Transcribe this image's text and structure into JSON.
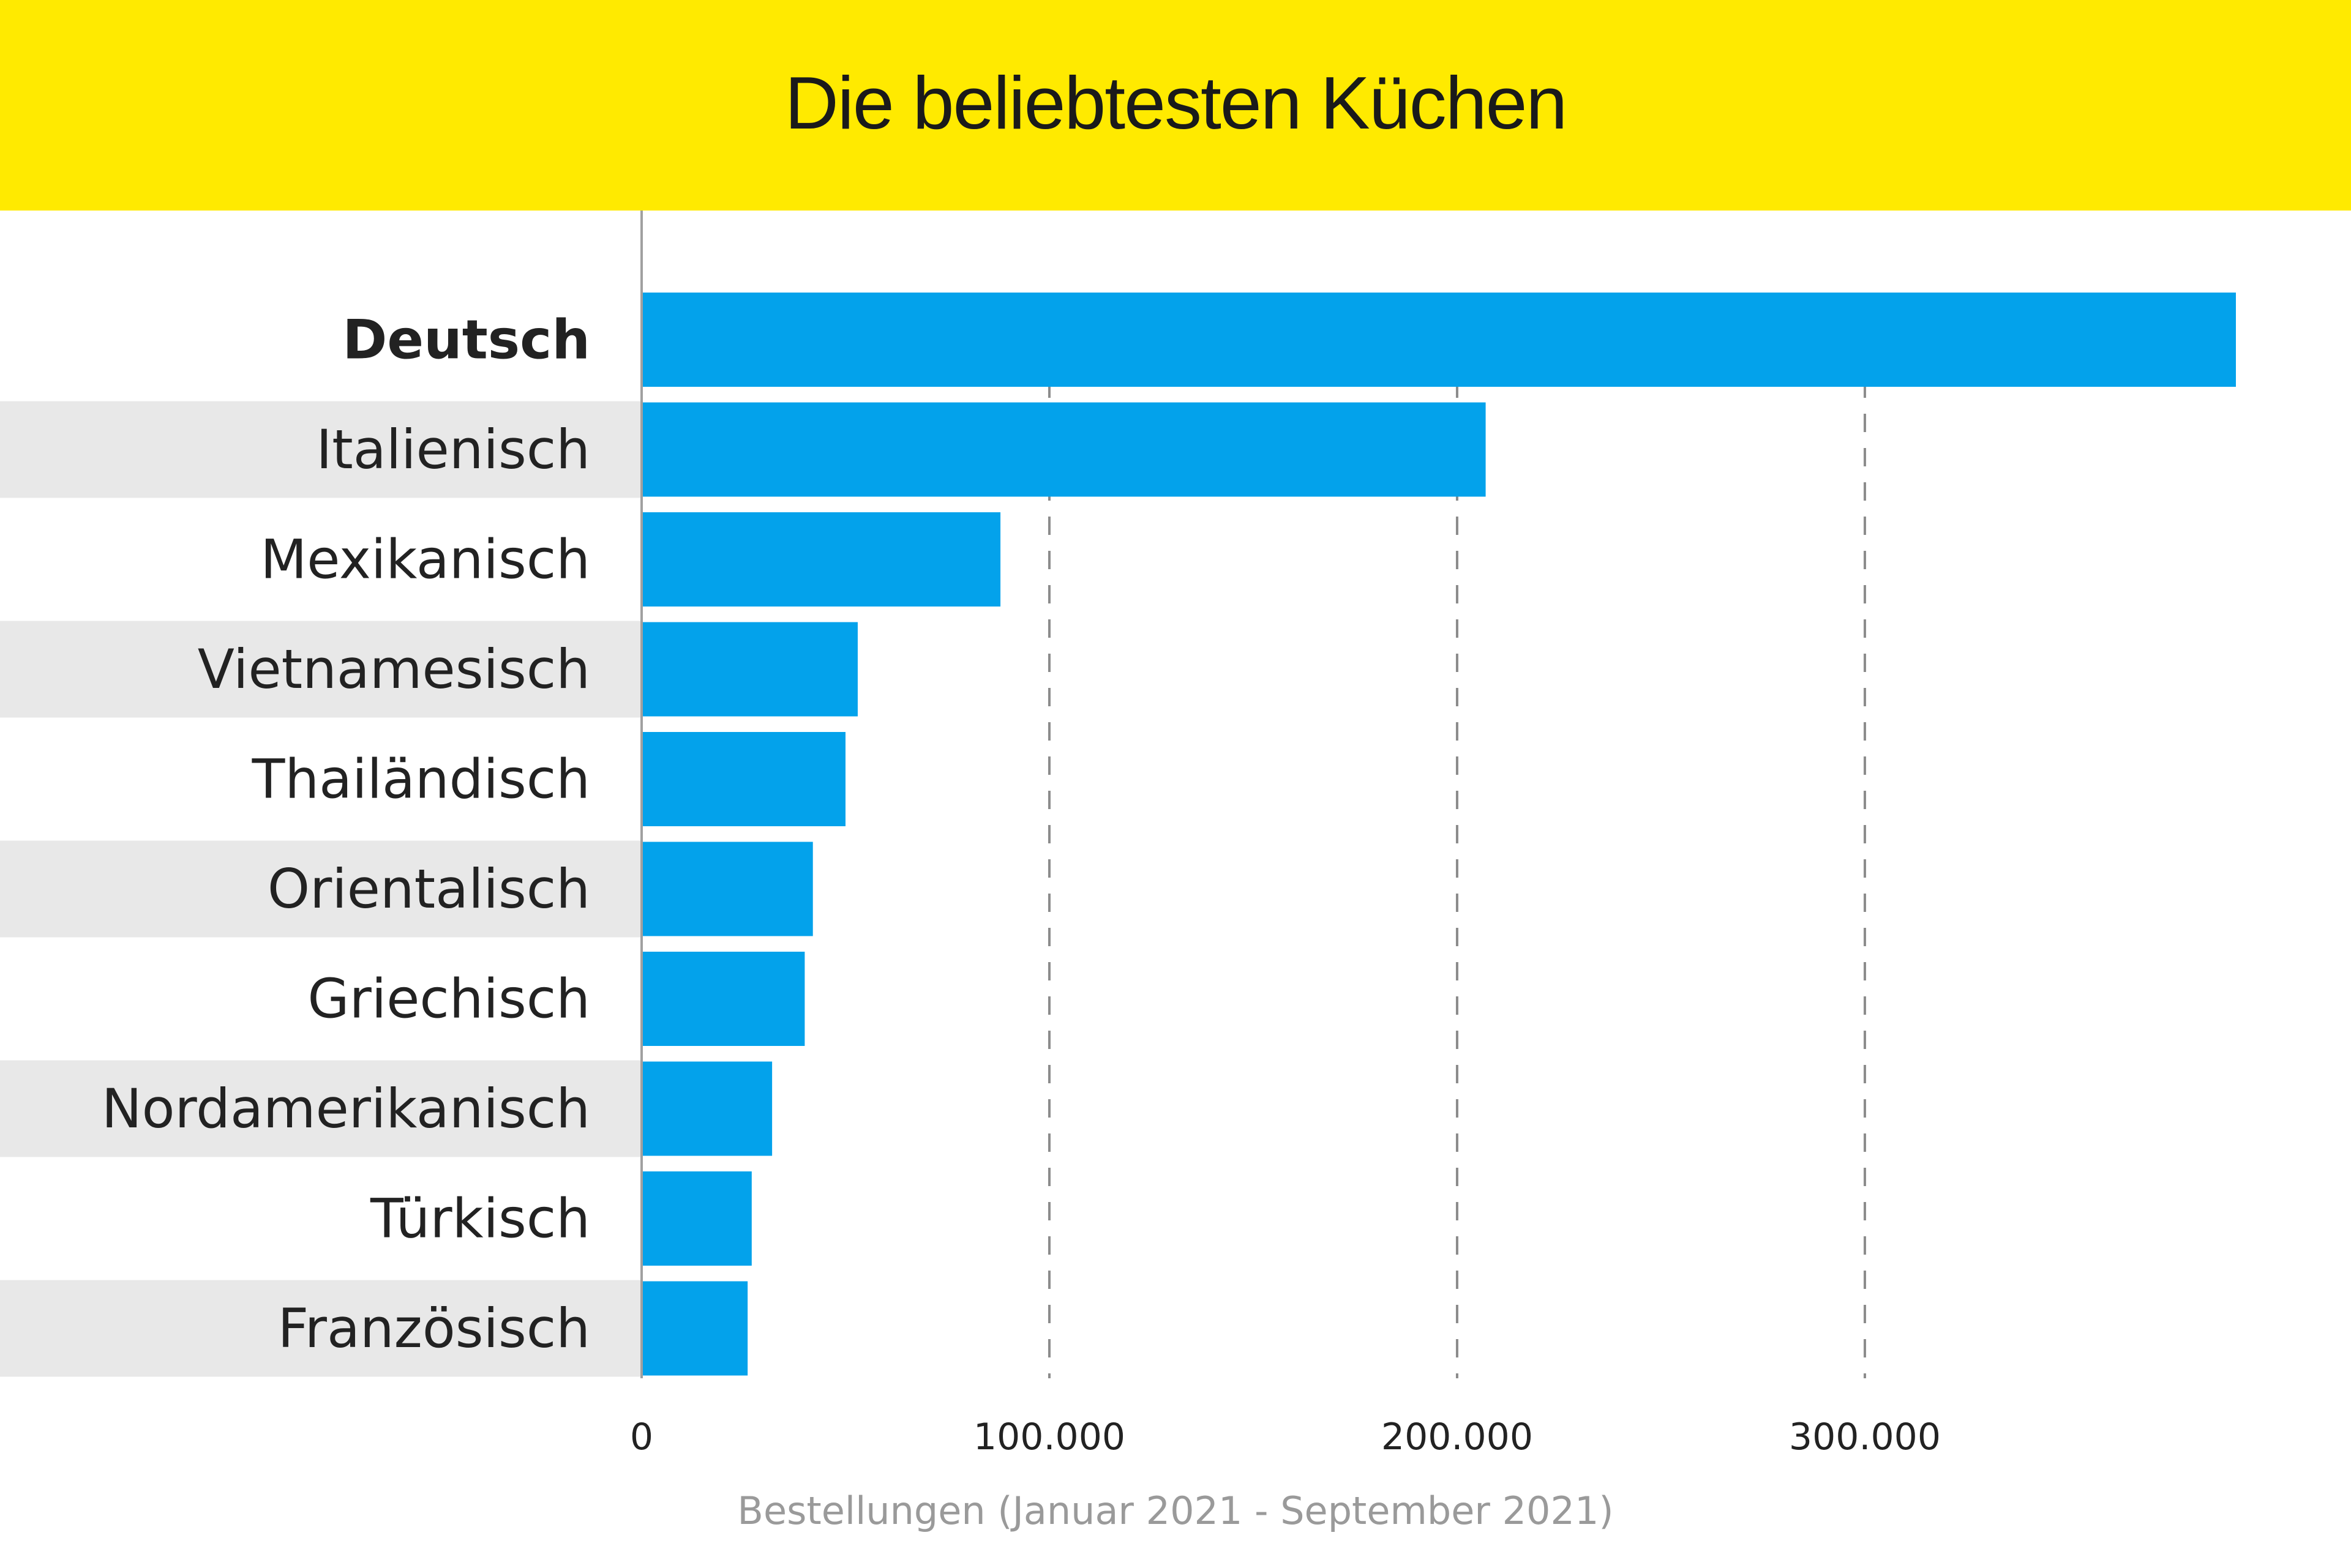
{
  "header": {
    "title": "Die beliebtesten Küchen"
  },
  "colors": {
    "header_bg": "#ffea00",
    "bar": "#03a2eb",
    "row_band": "#e8e8e8",
    "grid": "#8c8c8c",
    "axis": "#a0a0a0",
    "label": "#222222",
    "tick": "#222222"
  },
  "chart_data": {
    "type": "bar",
    "orientation": "horizontal",
    "title": "Die beliebtesten Küchen",
    "xlabel": "Bestellungen (Januar 2021 - September 2021)",
    "ylabel": "",
    "categories": [
      "Deutsch",
      "Italienisch",
      "Mexikanisch",
      "Vietnamesisch",
      "Thailändisch",
      "Orientalisch",
      "Griechisch",
      "Nordamerikanisch",
      "Türkisch",
      "Französisch"
    ],
    "values": [
      391000,
      207000,
      88000,
      53000,
      50000,
      42000,
      40000,
      32000,
      27000,
      26000
    ],
    "highlighted_category": "Deutsch",
    "xlim": [
      0,
      391000
    ],
    "xticks": [
      0,
      100000,
      200000,
      300000
    ],
    "xtick_labels": [
      "0",
      "100.000",
      "200.000",
      "300.000"
    ],
    "grid": "vertical dashed",
    "legend": "none"
  }
}
